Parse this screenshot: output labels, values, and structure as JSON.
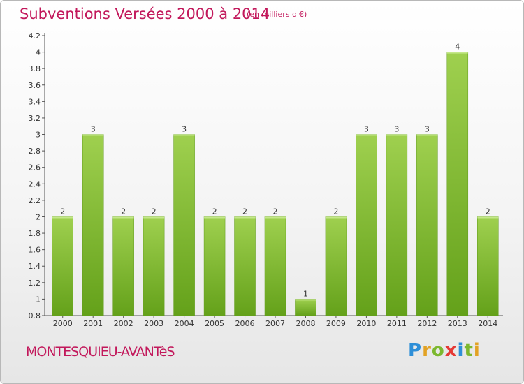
{
  "title": "Subventions Versées 2000 à 2014",
  "subtitle": "(en milliers d'€)",
  "commune": "MONTESQUIEU-AVANTèS",
  "logo": "Proxiti",
  "colors": {
    "bar_top": "#9fd04f",
    "bar_bottom": "#64a11a",
    "title": "#c2185b"
  },
  "chart_data": {
    "type": "bar",
    "categories": [
      "2000",
      "2001",
      "2002",
      "2003",
      "2004",
      "2005",
      "2006",
      "2007",
      "2008",
      "2009",
      "2010",
      "2011",
      "2012",
      "2013",
      "2014"
    ],
    "values": [
      2,
      3,
      2,
      2,
      3,
      2,
      2,
      2,
      1,
      2,
      3,
      3,
      3,
      4,
      2
    ],
    "data_labels": [
      "2",
      "3",
      "2",
      "2",
      "3",
      "2",
      "2",
      "2",
      "1",
      "2",
      "3",
      "3",
      "3",
      "4",
      "2"
    ],
    "yticks": [
      "0.8",
      "1",
      "1.2",
      "1.4",
      "1.6",
      "1.8",
      "2",
      "2.2",
      "2.4",
      "2.6",
      "2.8",
      "3",
      "3.2",
      "3.4",
      "3.6",
      "3.8",
      "4",
      "4.2"
    ],
    "ylim": [
      0.8,
      4.2
    ],
    "xlabel": "",
    "ylabel": "",
    "grid": false
  }
}
